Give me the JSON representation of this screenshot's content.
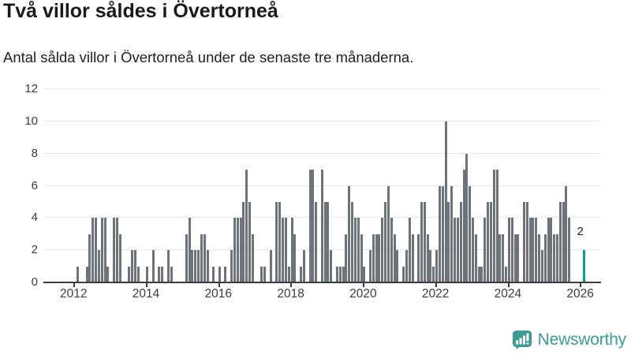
{
  "header": {
    "title": "Två villor såldes i Övertorneå",
    "subtitle": "Antal sålda villor i Övertorneå under de senaste tre månaderna."
  },
  "chart_data": {
    "type": "bar",
    "title": "Två villor såldes i Övertorneå",
    "subtitle": "Antal sålda villor i Övertorneå under de senaste tre månaderna.",
    "x_start_year": 2012,
    "months_per_bar": 1,
    "values": [
      0,
      1,
      0,
      0,
      1,
      3,
      4,
      4,
      2,
      4,
      4,
      1,
      0,
      4,
      4,
      3,
      0,
      0,
      1,
      2,
      2,
      1,
      0,
      0,
      1,
      0,
      2,
      0,
      1,
      1,
      0,
      2,
      1,
      0,
      0,
      0,
      0,
      3,
      4,
      2,
      2,
      2,
      3,
      3,
      2,
      0,
      1,
      0,
      1,
      0,
      1,
      0,
      2,
      4,
      4,
      4,
      5,
      7,
      5,
      3,
      0,
      0,
      1,
      1,
      0,
      2,
      0,
      5,
      5,
      4,
      4,
      1,
      4,
      3,
      0,
      1,
      2,
      0,
      7,
      7,
      5,
      0,
      7,
      5,
      5,
      2,
      0,
      1,
      1,
      1,
      3,
      6,
      5,
      4,
      4,
      3,
      1,
      0,
      2,
      3,
      3,
      3,
      4,
      5,
      6,
      4,
      3,
      2,
      0,
      1,
      2,
      4,
      3,
      0,
      3,
      5,
      5,
      3,
      2,
      1,
      2,
      6,
      6,
      10,
      5,
      6,
      4,
      4,
      5,
      7,
      8,
      6,
      4,
      3,
      1,
      1,
      4,
      5,
      5,
      7,
      7,
      3,
      3,
      1,
      4,
      4,
      3,
      3,
      0,
      5,
      5,
      4,
      4,
      4,
      3,
      2,
      3,
      4,
      4,
      3,
      3,
      5,
      5,
      6,
      4,
      0,
      0,
      0,
      0,
      2
    ],
    "x_tick_labels": [
      "2012",
      "2014",
      "2016",
      "2018",
      "2020",
      "2022",
      "2024",
      "2026"
    ],
    "yticks": [
      0,
      2,
      4,
      6,
      8,
      10,
      12
    ],
    "ylim": [
      0,
      12
    ],
    "grid": "horizontal",
    "legend": "none",
    "bar_color": "#6e727b",
    "highlight_last": {
      "label": "2",
      "value": 2,
      "color": "#00a49b"
    }
  },
  "footer": {
    "brand": "Newsworthy",
    "brand_color": "#3b9c95"
  }
}
